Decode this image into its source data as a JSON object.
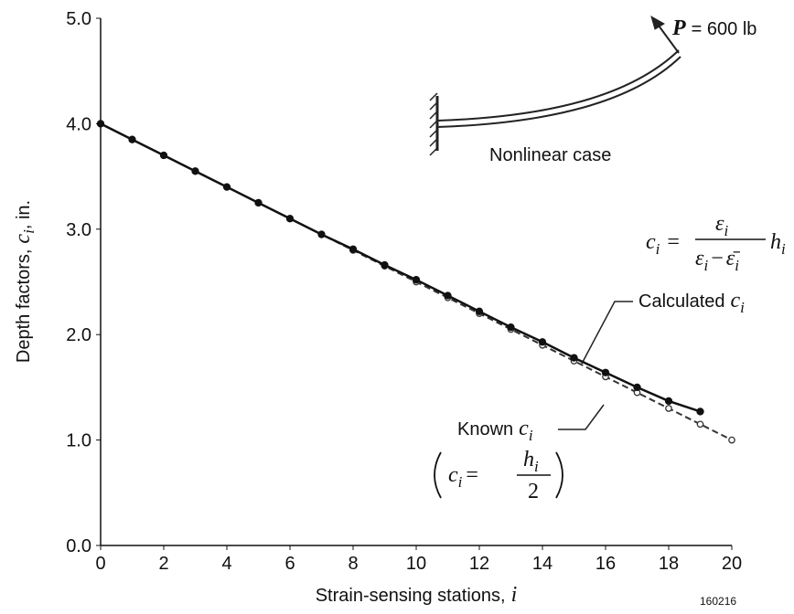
{
  "chart_data": {
    "type": "line",
    "x_label": {
      "text": "Strain-sensing stations,",
      "symbol": "i"
    },
    "y_label": {
      "text": "Depth factors,",
      "symbol": "c",
      "sub": "i",
      "unit": ", in."
    },
    "x": [
      0,
      1,
      2,
      3,
      4,
      5,
      6,
      7,
      8,
      9,
      10,
      11,
      12,
      13,
      14,
      15,
      16,
      17,
      18,
      19,
      20
    ],
    "series": [
      {
        "name": "Calculated",
        "color": "#111111",
        "marker": "filled",
        "dashed": false,
        "values": [
          4.0,
          3.85,
          3.7,
          3.55,
          3.4,
          3.25,
          3.1,
          2.95,
          2.81,
          2.66,
          2.52,
          2.37,
          2.22,
          2.07,
          1.93,
          1.78,
          1.64,
          1.5,
          1.37,
          1.27,
          null
        ]
      },
      {
        "name": "Known",
        "color": "#333333",
        "marker": "open",
        "dashed": true,
        "values": [
          4.0,
          3.85,
          3.7,
          3.55,
          3.4,
          3.25,
          3.1,
          2.95,
          2.8,
          2.65,
          2.5,
          2.35,
          2.2,
          2.05,
          1.9,
          1.75,
          1.6,
          1.45,
          1.3,
          1.15,
          1.0
        ]
      }
    ],
    "xlim": [
      0,
      20
    ],
    "xticks": [
      0,
      2,
      4,
      6,
      8,
      10,
      12,
      14,
      16,
      18,
      20
    ],
    "ylim": [
      0,
      5
    ],
    "yticks": [
      {
        "value": 0,
        "label": "0.0"
      },
      {
        "value": 1,
        "label": "1.0"
      },
      {
        "value": 2,
        "label": "2.0"
      },
      {
        "value": 3,
        "label": "3.0"
      },
      {
        "value": 4,
        "label": "4.0"
      },
      {
        "value": 5,
        "label": "5.0"
      }
    ],
    "grid": false,
    "annotations": {
      "load": {
        "symbol": "P",
        "text": "= 600 lb"
      },
      "case": "Nonlinear case",
      "calculated": {
        "text": "Calculated",
        "symbol": "c",
        "sub": "i"
      },
      "known": {
        "text": "Known",
        "symbol": "c",
        "sub": "i"
      },
      "known_formula": {
        "lhs": "c",
        "lhs_sub": "i",
        "eq": "=",
        "num": "h",
        "num_sub": "i",
        "den": "2"
      },
      "formula": {
        "lhs": "c",
        "lhs_sub": "i",
        "eq": "=",
        "num": "ε",
        "num_sub": "i",
        "den_a": "ε",
        "den_a_sub": "i",
        "minus": "−",
        "den_b": "ε̄",
        "den_b_sub": "i",
        "factor": "h",
        "factor_sub": "i"
      },
      "figure_id": "160216"
    }
  }
}
